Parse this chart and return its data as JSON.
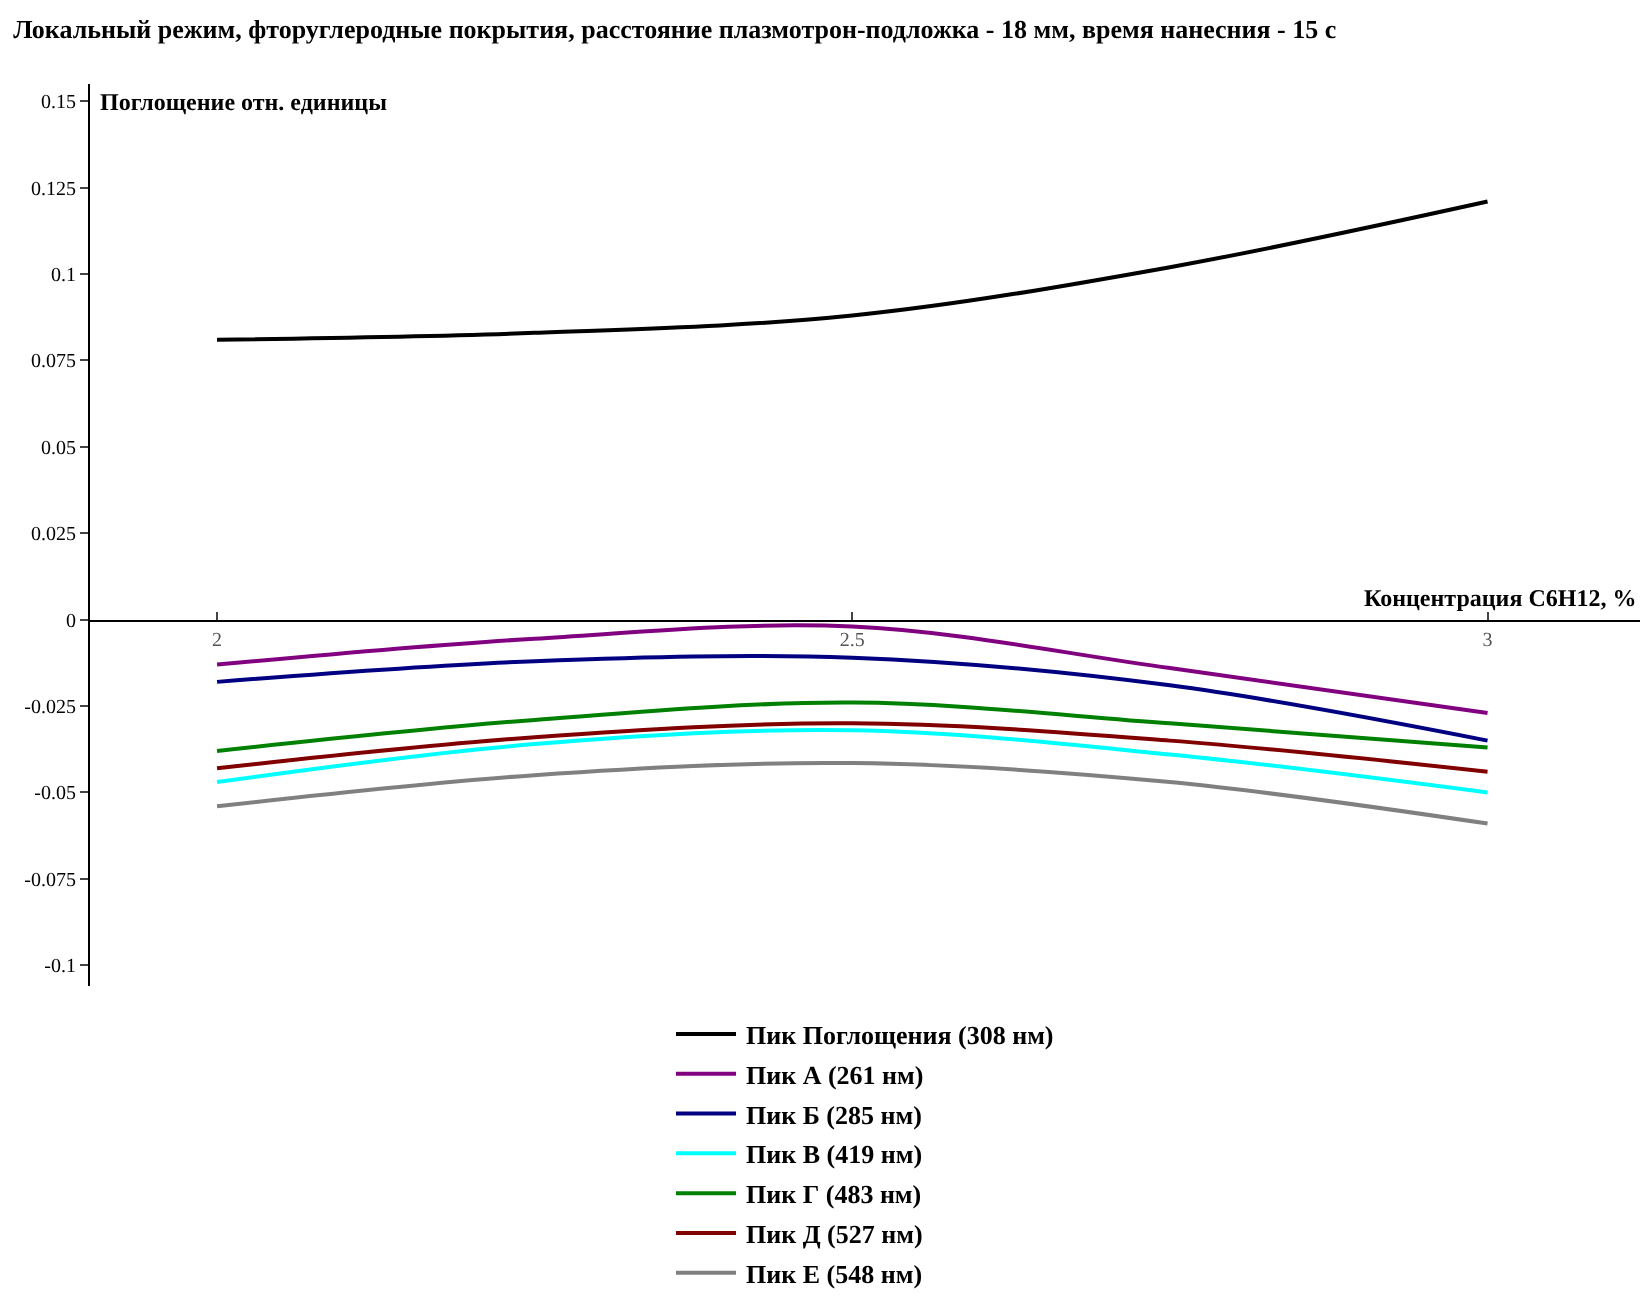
{
  "chart_data": {
    "type": "line",
    "title": "Локальный режим, фторуглеродные покрытия, расстояние плазмотрон-подложка - 18 мм, время нанесния - 15 с",
    "xlabel": "Концентрация C6H12, %",
    "ylabel": "Поглощение отн. единицы",
    "x": [
      2,
      2.25,
      2.5,
      2.75,
      3
    ],
    "series": [
      {
        "name": "Пик Поглощения (308 нм)",
        "color": "#000000",
        "values": [
          0.081,
          0.083,
          0.088,
          0.102,
          0.121
        ]
      },
      {
        "name": "Пик А (261 нм)",
        "color": "#800080",
        "values": [
          -0.013,
          -0.0055,
          -0.002,
          -0.014,
          -0.027
        ]
      },
      {
        "name": "Пик Б (285 нм)",
        "color": "#000080",
        "values": [
          -0.018,
          -0.012,
          -0.011,
          -0.019,
          -0.035
        ]
      },
      {
        "name": "Пик В (419 нм)",
        "color": "#00ffff",
        "values": [
          -0.047,
          -0.036,
          -0.032,
          -0.039,
          -0.05
        ]
      },
      {
        "name": "Пик Г (483 нм)",
        "color": "#008000",
        "values": [
          -0.038,
          -0.029,
          -0.024,
          -0.03,
          -0.037
        ]
      },
      {
        "name": "Пик Д (527 нм)",
        "color": "#800000",
        "values": [
          -0.043,
          -0.034,
          -0.03,
          -0.035,
          -0.044
        ]
      },
      {
        "name": "Пик Е (548 нм)",
        "color": "#808080",
        "values": [
          -0.054,
          -0.045,
          -0.0415,
          -0.047,
          -0.059
        ]
      }
    ],
    "xlim": [
      1.9,
      3.12
    ],
    "xticks": [
      2,
      2.5,
      3
    ],
    "ylim": [
      -0.106,
      0.155
    ],
    "yticks": [
      -0.1,
      -0.075,
      -0.05,
      -0.025,
      0,
      0.025,
      0.05,
      0.075,
      0.1,
      0.125,
      0.15
    ],
    "grid": false,
    "legend": "bottom",
    "marker": "none",
    "line_style": "solid"
  }
}
